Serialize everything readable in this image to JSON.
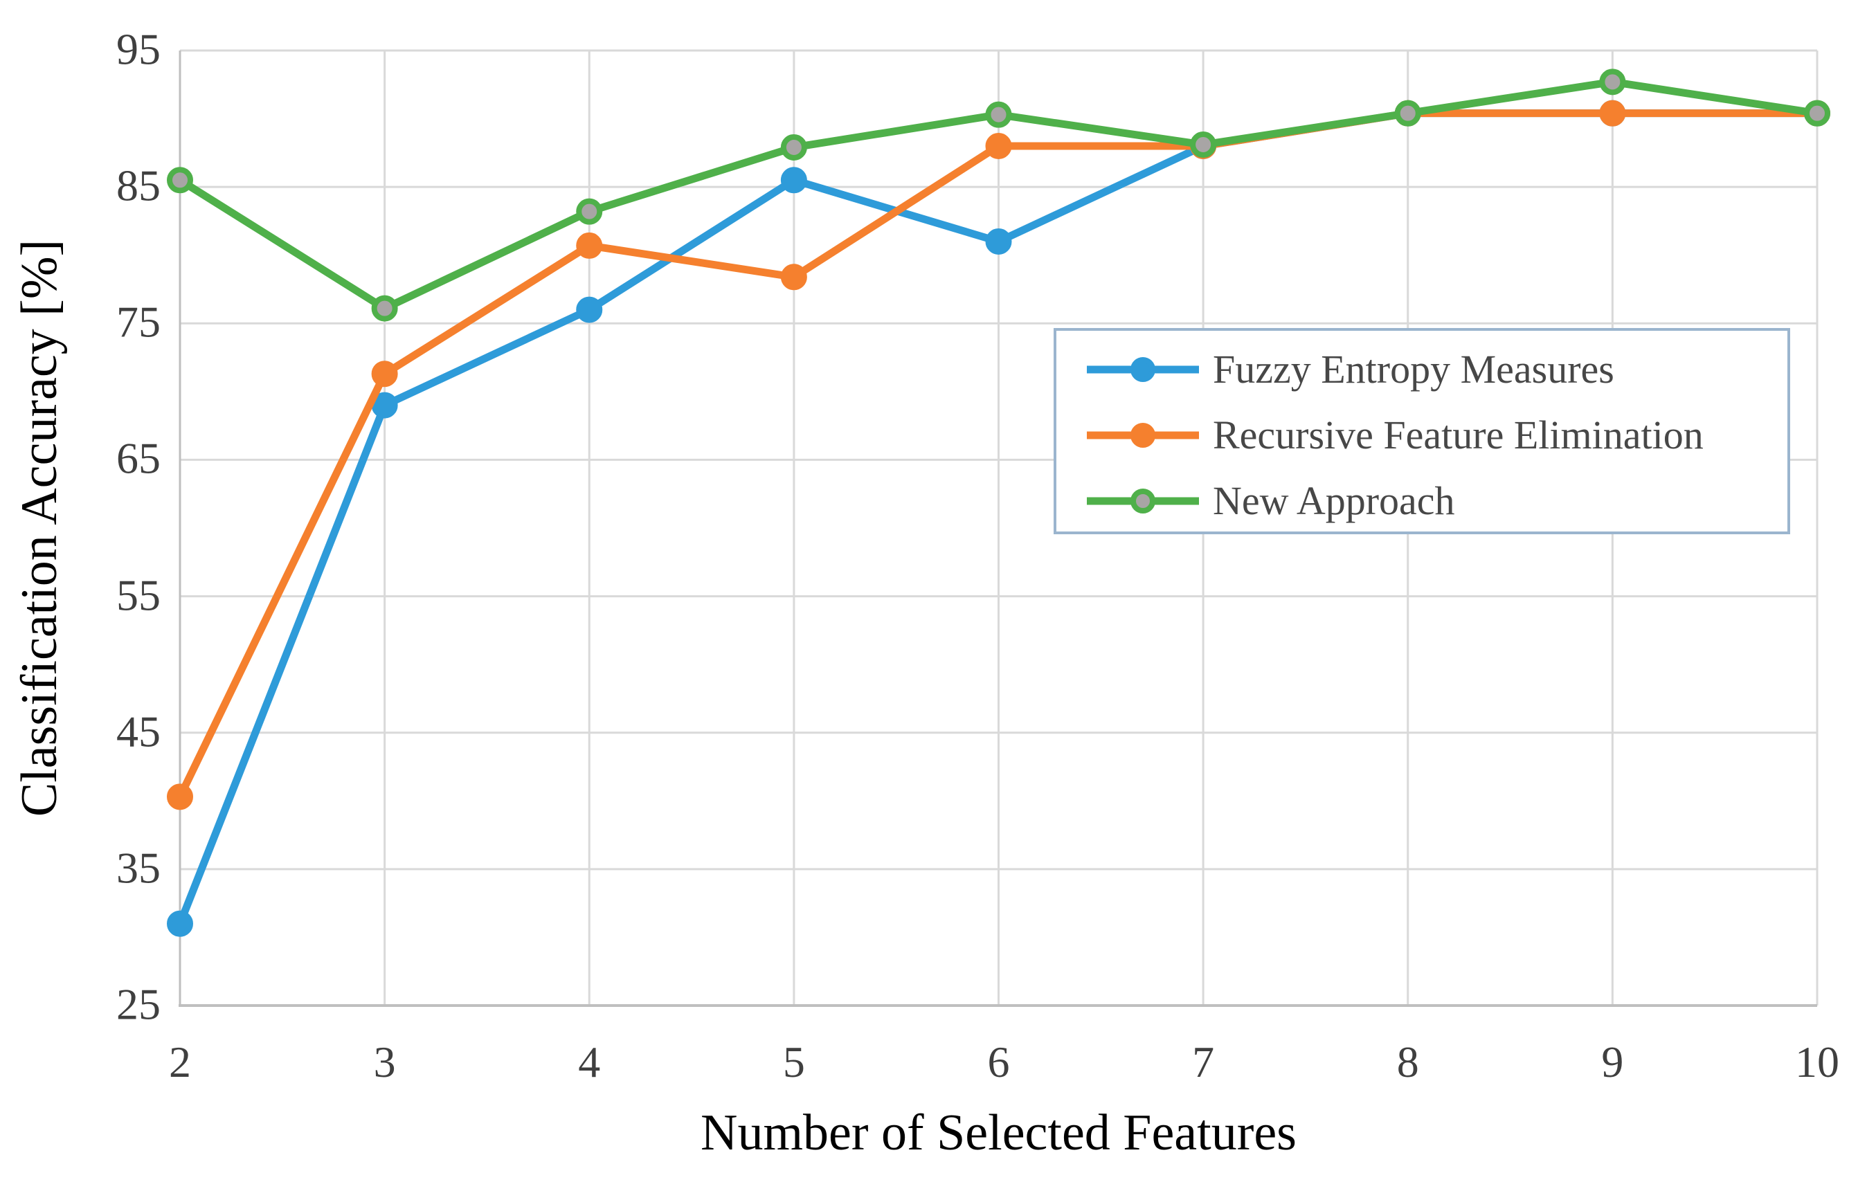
{
  "chart_data": {
    "type": "line",
    "title": "",
    "xlabel": "Number of Selected Features",
    "ylabel": "Classification Accuracy [%]",
    "xlim": [
      2,
      10
    ],
    "ylim": [
      25,
      95
    ],
    "x_ticks": [
      2,
      3,
      4,
      5,
      6,
      7,
      8,
      9,
      10
    ],
    "y_ticks": [
      25,
      35,
      45,
      55,
      65,
      75,
      85,
      95
    ],
    "grid": true,
    "legend_position": "inside-top-right",
    "x": [
      2,
      3,
      4,
      5,
      6,
      7,
      8,
      9,
      10
    ],
    "series": [
      {
        "name": "Fuzzy Entropy Measures",
        "color": "#2e9bd9",
        "marker_fill": "#2e9bd9",
        "marker_stroke": "#2e9bd9",
        "values": [
          31,
          69,
          76,
          85.5,
          81,
          88,
          90.4,
          90.4,
          90.4
        ]
      },
      {
        "name": "Recursive Feature Elimination",
        "color": "#f5802e",
        "marker_fill": "#f5802e",
        "marker_stroke": "#f5802e",
        "values": [
          40.3,
          71.3,
          80.7,
          78.4,
          88,
          88,
          90.4,
          90.4,
          90.4
        ]
      },
      {
        "name": "New Approach",
        "color": "#4fb04a",
        "marker_fill": "#a8a5a5",
        "marker_stroke": "#4fb04a",
        "values": [
          85.5,
          76.1,
          83.2,
          87.9,
          90.3,
          88.1,
          90.4,
          92.7,
          90.4
        ]
      }
    ],
    "colors": {
      "gridline": "#d9d9d9",
      "axis_line": "#bfbfbf",
      "tick_label": "#3f3f3f",
      "axis_title": "#000000",
      "legend_border": "#9bb5ce",
      "background": "#ffffff"
    }
  }
}
